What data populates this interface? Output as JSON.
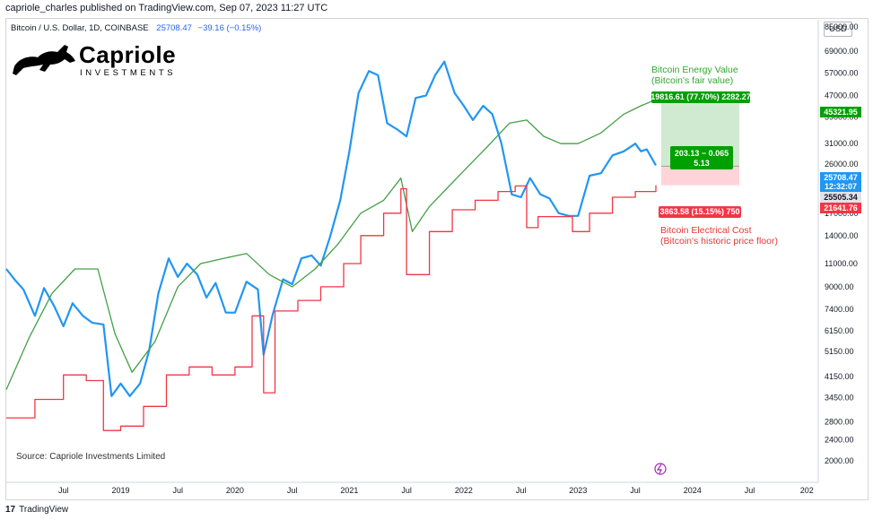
{
  "header": {
    "published": "capriole_charles published on TradingView.com, Sep 07, 2023 11:27 UTC",
    "symbol": "Bitcoin / U.S. Dollar, 1D, COINBASE",
    "last_price": "25708.47",
    "change": "−39.16 (−0.15%)",
    "currency": "USD"
  },
  "brand": {
    "name": "Capriole",
    "sub": "INVESTMENTS",
    "source": "Source: Capriole Investments Limited",
    "tv": "TradingView",
    "tv_mark": "17"
  },
  "annotations": {
    "energy_title": "Bitcoin Energy Value",
    "energy_sub": "(Bitcoin's fair value)",
    "cost_title": "Bitcoin Electrical Cost",
    "cost_sub": "(Bitcoin's historic price floor)",
    "measure_up": "19816.61 (77.70%) 2282.27",
    "measure_mid1": "203.13 − 0.065",
    "measure_mid2": "5.13",
    "measure_down": "3863.58 (15.15%) 750"
  },
  "colors": {
    "price": "#2196f3",
    "energy": "#43a047",
    "cost": "#f23645",
    "measure_up": "#00a000",
    "measure_down": "#f23645"
  },
  "chart_data": {
    "type": "line",
    "scale": "log",
    "ylim": [
      1700,
      85000
    ],
    "x_ticks": [
      "Jul",
      "2019",
      "Jul",
      "2020",
      "Jul",
      "2021",
      "Jul",
      "2022",
      "Jul",
      "2023",
      "Jul",
      "2024",
      "Jul",
      "202"
    ],
    "y_ticks": [
      85000,
      69000,
      57000,
      47000,
      39000,
      31000,
      26000,
      21000,
      17000,
      14000,
      11000,
      9000,
      7400,
      6150,
      5150,
      4150,
      3450,
      2800,
      2400,
      2000
    ],
    "price_labels": [
      {
        "label": "45321.95",
        "value": 45321.95,
        "color": "#00a000"
      },
      {
        "label": "25708.47",
        "value": 25708.47,
        "color": "#2196f3"
      },
      {
        "label": "12:32:07",
        "value": 23900,
        "color": "#2196f3"
      },
      {
        "label": "25505.34",
        "value": 22300,
        "color": "#e0e3eb"
      },
      {
        "label": "21641.76",
        "value": 21641.76,
        "color": "#f23645"
      }
    ],
    "series": [
      {
        "name": "Bitcoin / U.S. Dollar",
        "color": "#2196f3",
        "x": [
          2018.0,
          2018.08,
          2018.15,
          2018.25,
          2018.33,
          2018.42,
          2018.5,
          2018.58,
          2018.67,
          2018.75,
          2018.85,
          2018.92,
          2019.0,
          2019.08,
          2019.17,
          2019.25,
          2019.33,
          2019.42,
          2019.5,
          2019.58,
          2019.67,
          2019.75,
          2019.83,
          2019.92,
          2020.0,
          2020.1,
          2020.2,
          2020.25,
          2020.33,
          2020.42,
          2020.5,
          2020.58,
          2020.67,
          2020.75,
          2020.83,
          2020.92,
          2021.0,
          2021.08,
          2021.17,
          2021.25,
          2021.33,
          2021.42,
          2021.5,
          2021.58,
          2021.67,
          2021.75,
          2021.83,
          2021.92,
          2022.0,
          2022.08,
          2022.17,
          2022.25,
          2022.33,
          2022.42,
          2022.5,
          2022.58,
          2022.67,
          2022.75,
          2022.83,
          2022.92,
          2023.0,
          2023.1,
          2023.2,
          2023.3,
          2023.4,
          2023.5,
          2023.55,
          2023.6,
          2023.68
        ],
        "values": [
          10500,
          9500,
          8800,
          7000,
          8900,
          7600,
          6400,
          7800,
          7000,
          6600,
          6500,
          3500,
          3900,
          3500,
          3900,
          5200,
          8500,
          11500,
          9800,
          11000,
          10000,
          8200,
          9300,
          7200,
          7200,
          9400,
          8800,
          5000,
          7100,
          9600,
          9200,
          11500,
          11800,
          10800,
          13800,
          19000,
          29000,
          48000,
          58000,
          56000,
          37000,
          35000,
          33000,
          46000,
          47000,
          56000,
          63000,
          48000,
          43000,
          38000,
          43000,
          40000,
          31000,
          20000,
          19500,
          23000,
          20000,
          19300,
          17000,
          16600,
          16600,
          23500,
          24000,
          28000,
          29000,
          31000,
          29000,
          29500,
          25708
        ]
      },
      {
        "name": "Bitcoin Energy Value",
        "color": "#43a047",
        "x": [
          2018.0,
          2018.2,
          2018.4,
          2018.6,
          2018.8,
          2018.95,
          2019.1,
          2019.3,
          2019.5,
          2019.7,
          2019.9,
          2020.1,
          2020.3,
          2020.5,
          2020.7,
          2020.9,
          2021.1,
          2021.3,
          2021.45,
          2021.55,
          2021.7,
          2021.85,
          2022.0,
          2022.2,
          2022.4,
          2022.55,
          2022.7,
          2022.85,
          2023.0,
          2023.2,
          2023.4,
          2023.55,
          2023.68
        ],
        "values": [
          3700,
          5800,
          8500,
          10500,
          10500,
          6000,
          4300,
          5600,
          9000,
          11000,
          11500,
          12000,
          10000,
          9000,
          10500,
          13000,
          17000,
          19000,
          23000,
          14500,
          18000,
          21000,
          24500,
          30000,
          37000,
          38000,
          33000,
          31000,
          31000,
          34000,
          40000,
          43000,
          45321
        ]
      },
      {
        "name": "Bitcoin Electrical Cost",
        "color": "#f23645",
        "x": [
          2018.0,
          2018.25,
          2018.5,
          2018.7,
          2018.85,
          2019.0,
          2019.2,
          2019.4,
          2019.6,
          2019.8,
          2020.0,
          2020.15,
          2020.25,
          2020.35,
          2020.55,
          2020.75,
          2020.95,
          2021.1,
          2021.3,
          2021.45,
          2021.5,
          2021.7,
          2021.9,
          2022.1,
          2022.3,
          2022.45,
          2022.55,
          2022.65,
          2022.8,
          2022.95,
          2023.1,
          2023.3,
          2023.5,
          2023.68
        ],
        "values": [
          2900,
          3400,
          4200,
          4000,
          2600,
          2700,
          3200,
          4200,
          4500,
          4200,
          4500,
          7000,
          3600,
          7300,
          8000,
          9000,
          11000,
          14000,
          17000,
          21000,
          10000,
          14500,
          17500,
          19000,
          20500,
          21500,
          15000,
          16500,
          16500,
          14500,
          17000,
          19500,
          20500,
          21641
        ]
      }
    ]
  }
}
